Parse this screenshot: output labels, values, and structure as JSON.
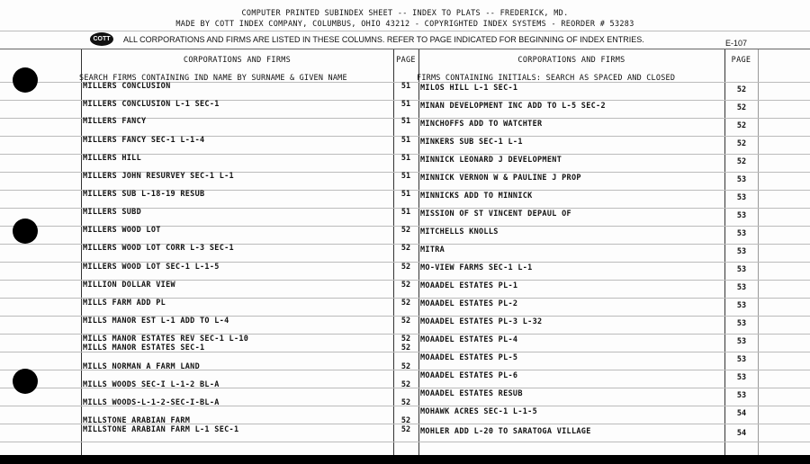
{
  "header": {
    "line1": "COMPUTER PRINTED SUBINDEX SHEET -- INDEX TO PLATS -- FREDERICK, MD.",
    "line2": "MADE BY COTT INDEX COMPANY, COLUMBUS, OHIO 43212 - COPYRIGHTED INDEX SYSTEMS - REORDER # 53283",
    "logo": "COTT",
    "notice": "ALL CORPORATIONS AND FIRMS ARE LISTED IN THESE COLUMNS. REFER TO PAGE INDICATED FOR BEGINNING OF INDEX ENTRIES.",
    "form_no": "E-107"
  },
  "left": {
    "heading": "CORPORATIONS AND FIRMS",
    "page_heading": "PAGE",
    "subheading": "SEARCH FIRMS CONTAINING IND NAME BY SURNAME & GIVEN NAME",
    "entries": [
      {
        "name": "MILLERS CONCLUSION",
        "page": "51"
      },
      {
        "name": "MILLERS CONCLUSION L-1 SEC-1",
        "page": "51"
      },
      {
        "name": "MILLERS FANCY",
        "page": "51"
      },
      {
        "name": "MILLERS FANCY SEC-1 L-1-4",
        "page": "51"
      },
      {
        "name": "MILLERS HILL",
        "page": "51"
      },
      {
        "name": "MILLERS JOHN RESURVEY SEC-1 L-1",
        "page": "51"
      },
      {
        "name": "MILLERS SUB L-18-19 RESUB",
        "page": "51"
      },
      {
        "name": "MILLERS SUBD",
        "page": "51"
      },
      {
        "name": "MILLERS WOOD LOT",
        "page": "52"
      },
      {
        "name": "MILLERS WOOD LOT CORR L-3 SEC-1",
        "page": "52"
      },
      {
        "name": "MILLERS WOOD LOT SEC-1 L-1-5",
        "page": "52"
      },
      {
        "name": "MILLION DOLLAR VIEW",
        "page": "52"
      },
      {
        "name": "MILLS FARM ADD PL",
        "page": "52"
      },
      {
        "name": "MILLS MANOR EST L-1 ADD TO L-4",
        "page": "52"
      },
      {
        "name": "MILLS MANOR ESTATES REV SEC-1 L-10",
        "page": "52"
      },
      {
        "name": "MILLS MANOR ESTATES SEC-1",
        "page": "52"
      },
      {
        "name": "MILLS NORMAN A FARM LAND",
        "page": "52"
      },
      {
        "name": "MILLS WOODS SEC-I L-1-2 BL-A",
        "page": "52"
      },
      {
        "name": "MILLS WOODS-L-1-2-SEC-I-BL-A",
        "page": "52"
      },
      {
        "name": "MILLSTONE ARABIAN FARM",
        "page": "52"
      },
      {
        "name": "MILLSTONE ARABIAN FARM L-1 SEC-1",
        "page": "52"
      }
    ]
  },
  "right": {
    "heading": "CORPORATIONS AND FIRMS",
    "page_heading": "PAGE",
    "subheading": "FIRMS CONTAINING INITIALS:  SEARCH AS SPACED AND CLOSED",
    "entries": [
      {
        "name": "MILOS HILL L-1 SEC-1",
        "page": "52"
      },
      {
        "name": "MINAN DEVELOPMENT INC ADD TO L-5 SEC-2",
        "page": "52"
      },
      {
        "name": "MINCHOFFS ADD TO WATCHTER",
        "page": "52"
      },
      {
        "name": "MINKERS SUB SEC-1 L-1",
        "page": "52"
      },
      {
        "name": "MINNICK LEONARD J DEVELOPMENT",
        "page": "52"
      },
      {
        "name": "MINNICK VERNON W & PAULINE J PROP",
        "page": "53"
      },
      {
        "name": "MINNICKS ADD TO MINNICK",
        "page": "53"
      },
      {
        "name": "MISSION OF ST VINCENT DEPAUL OF",
        "page": "53"
      },
      {
        "name": "MITCHELLS KNOLLS",
        "page": "53"
      },
      {
        "name": "MITRA",
        "page": "53"
      },
      {
        "name": "MO-VIEW FARMS SEC-1 L-1",
        "page": "53"
      },
      {
        "name": "MOAADEL ESTATES PL-1",
        "page": "53"
      },
      {
        "name": "MOAADEL ESTATES PL-2",
        "page": "53"
      },
      {
        "name": "MOAADEL ESTATES PL-3 L-32",
        "page": "53"
      },
      {
        "name": "MOAADEL ESTATES PL-4",
        "page": "53"
      },
      {
        "name": "MOAADEL ESTATES PL-5",
        "page": "53"
      },
      {
        "name": "MOAADEL ESTATES PL-6",
        "page": "53"
      },
      {
        "name": "MOAADEL ESTATES RESUB",
        "page": "53"
      },
      {
        "name": "MOHAWK ACRES SEC-1 L-1-5",
        "page": "54"
      },
      {
        "name": "MOHLER ADD L-20 TO SARATOGA VILLAGE",
        "page": "54"
      }
    ]
  }
}
